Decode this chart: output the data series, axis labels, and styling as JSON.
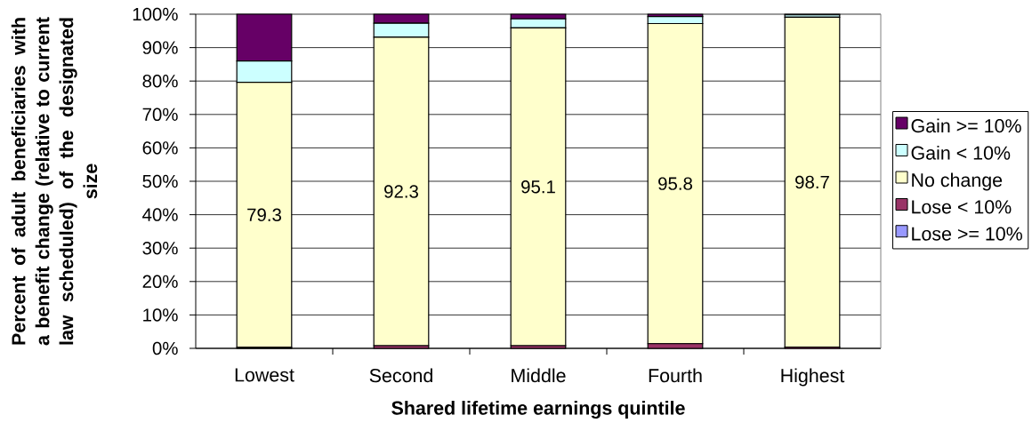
{
  "chart_data": {
    "type": "bar",
    "stacked": true,
    "categories": [
      "Lowest",
      "Second",
      "Middle",
      "Fourth",
      "Highest"
    ],
    "series": [
      {
        "name": "Lose >= 10%",
        "color": "#9999ff",
        "values": [
          0,
          0,
          0,
          0,
          0
        ]
      },
      {
        "name": "Lose < 10%",
        "color": "#993366",
        "values": [
          0.3,
          0.8,
          0.8,
          1.4,
          0.4
        ]
      },
      {
        "name": "No change",
        "color": "#ffffcc",
        "values": [
          79.3,
          92.3,
          95.1,
          95.8,
          98.7
        ],
        "value_labels": [
          "79.3",
          "92.3",
          "95.1",
          "95.8",
          "98.7"
        ]
      },
      {
        "name": "Gain < 10%",
        "color": "#ccffff",
        "values": [
          6.4,
          4.2,
          2.7,
          2.1,
          0.7
        ]
      },
      {
        "name": "Gain >= 10%",
        "color": "#660066",
        "values": [
          14.0,
          2.7,
          1.4,
          0.7,
          0.2
        ]
      }
    ],
    "xlabel": "Shared lifetime earnings quintile",
    "ylabel": "Percent of adult beneficiaries with a benefit change (relative to current law scheduled) of the designated size",
    "ylim": [
      0,
      100
    ],
    "yticks": [
      {
        "value": 0,
        "label": "0%"
      },
      {
        "value": 10,
        "label": "10%"
      },
      {
        "value": 20,
        "label": "20%"
      },
      {
        "value": 30,
        "label": "30%"
      },
      {
        "value": 40,
        "label": "40%"
      },
      {
        "value": 50,
        "label": "50%"
      },
      {
        "value": 60,
        "label": "60%"
      },
      {
        "value": 70,
        "label": "70%"
      },
      {
        "value": 80,
        "label": "80%"
      },
      {
        "value": 90,
        "label": "90%"
      },
      {
        "value": 100,
        "label": "100%"
      }
    ],
    "grid": "y",
    "legend": "right"
  }
}
